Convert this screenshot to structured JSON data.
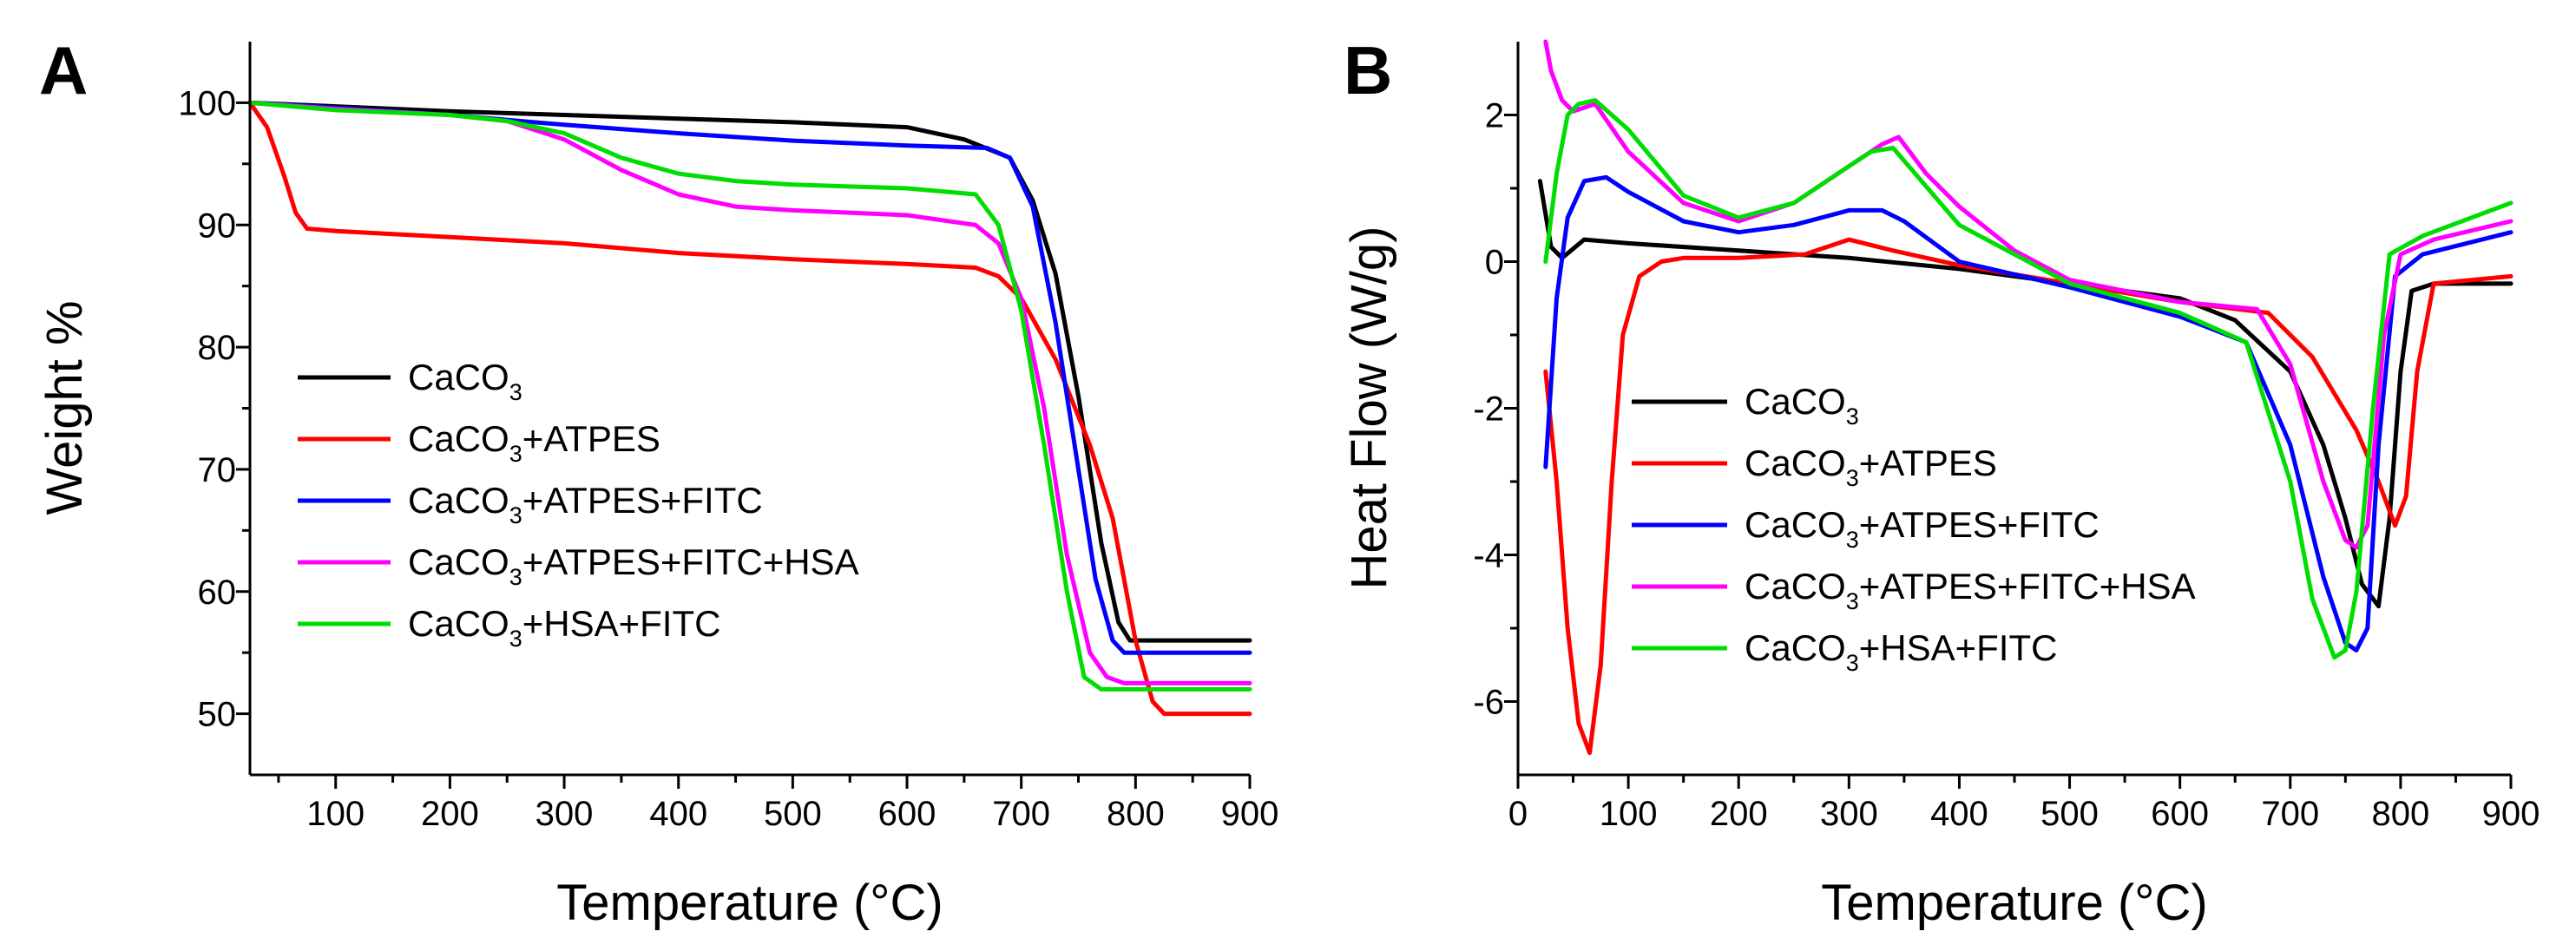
{
  "chart_data": [
    {
      "type": "line",
      "panel": "A",
      "title": "",
      "xlabel": "Temperature (°C)",
      "ylabel": "Weight %",
      "xlim": [
        25,
        900
      ],
      "ylim": [
        45,
        105
      ],
      "xticks": [
        100,
        200,
        300,
        400,
        500,
        600,
        700,
        800,
        900
      ],
      "yticks": [
        50,
        60,
        70,
        80,
        90,
        100
      ],
      "legend_position": "center-left",
      "series": [
        {
          "name": "CaCO3",
          "label": "CaCO",
          "sub": "3",
          "suffix": "",
          "color": "#000000",
          "x": [
            25,
            100,
            200,
            300,
            400,
            500,
            600,
            650,
            690,
            710,
            730,
            750,
            770,
            785,
            795,
            900
          ],
          "y": [
            100,
            99.7,
            99.3,
            99.0,
            98.7,
            98.4,
            98.0,
            97.0,
            95.5,
            92.0,
            86.0,
            76.0,
            64.0,
            57.5,
            56.0,
            56.0
          ]
        },
        {
          "name": "CaCO3+ATPES",
          "label": "CaCO",
          "sub": "3",
          "suffix": "+ATPES",
          "color": "#ff0000",
          "x": [
            25,
            40,
            55,
            65,
            75,
            100,
            200,
            300,
            400,
            500,
            600,
            660,
            680,
            700,
            730,
            760,
            780,
            800,
            815,
            825,
            900
          ],
          "y": [
            100,
            98.0,
            94.0,
            91.0,
            89.7,
            89.5,
            89.0,
            88.5,
            87.7,
            87.2,
            86.8,
            86.5,
            85.8,
            84.0,
            79.0,
            72.0,
            66.0,
            56.0,
            51.0,
            50.0,
            50.0
          ]
        },
        {
          "name": "CaCO3+ATPES+FITC",
          "label": "CaCO",
          "sub": "3",
          "suffix": "+ATPES+FITC",
          "color": "#0000ff",
          "x": [
            25,
            100,
            200,
            300,
            400,
            500,
            600,
            670,
            690,
            710,
            730,
            750,
            765,
            780,
            790,
            900
          ],
          "y": [
            100,
            99.6,
            99.0,
            98.2,
            97.5,
            96.9,
            96.5,
            96.3,
            95.5,
            91.5,
            82.0,
            70.0,
            61.0,
            56.0,
            55.0,
            55.0
          ]
        },
        {
          "name": "CaCO3+ATPES+FITC+HSA",
          "label": "CaCO",
          "sub": "3",
          "suffix": "+ATPES+FITC+HSA",
          "color": "#ff00ff",
          "x": [
            25,
            100,
            200,
            250,
            300,
            350,
            400,
            450,
            500,
            600,
            660,
            680,
            700,
            720,
            740,
            760,
            775,
            790,
            900
          ],
          "y": [
            100,
            99.5,
            99.0,
            98.5,
            97.0,
            94.5,
            92.5,
            91.5,
            91.2,
            90.8,
            90.0,
            88.5,
            84.0,
            75.0,
            63.0,
            55.0,
            53.0,
            52.5,
            52.5
          ]
        },
        {
          "name": "CaCO3+HSA+FITC",
          "label": "CaCO",
          "sub": "3",
          "suffix": "+HSA+FITC",
          "color": "#00dd00",
          "x": [
            25,
            100,
            200,
            250,
            300,
            350,
            400,
            450,
            500,
            600,
            660,
            680,
            700,
            720,
            740,
            755,
            770,
            900
          ],
          "y": [
            100,
            99.4,
            99.0,
            98.5,
            97.5,
            95.5,
            94.2,
            93.6,
            93.3,
            93.0,
            92.5,
            90.0,
            83.0,
            72.0,
            60.0,
            53.0,
            52.0,
            52.0
          ]
        }
      ]
    },
    {
      "type": "line",
      "panel": "B",
      "title": "",
      "xlabel": "Temperature (°C)",
      "ylabel": "Heat Flow (W/g)",
      "xlim": [
        0,
        900
      ],
      "ylim": [
        -7,
        3
      ],
      "xticks": [
        0,
        100,
        200,
        300,
        400,
        500,
        600,
        700,
        800,
        900
      ],
      "yticks": [
        -6,
        -4,
        -2,
        0,
        2
      ],
      "legend_position": "center-left",
      "series": [
        {
          "name": "CaCO3",
          "label": "CaCO",
          "sub": "3",
          "suffix": "",
          "color": "#000000",
          "x": [
            20,
            30,
            40,
            60,
            100,
            200,
            300,
            400,
            500,
            600,
            650,
            700,
            730,
            750,
            765,
            780,
            790,
            800,
            810,
            830,
            900
          ],
          "y": [
            1.1,
            0.2,
            0.05,
            0.3,
            0.25,
            0.15,
            0.05,
            -0.1,
            -0.3,
            -0.5,
            -0.8,
            -1.5,
            -2.5,
            -3.5,
            -4.4,
            -4.7,
            -3.5,
            -1.5,
            -0.4,
            -0.3,
            -0.3
          ]
        },
        {
          "name": "CaCO3+ATPES",
          "label": "CaCO",
          "sub": "3",
          "suffix": "+ATPES",
          "color": "#ff0000",
          "x": [
            25,
            35,
            45,
            55,
            65,
            75,
            85,
            95,
            110,
            130,
            150,
            200,
            260,
            300,
            340,
            400,
            500,
            600,
            680,
            720,
            760,
            780,
            795,
            805,
            815,
            830,
            900
          ],
          "y": [
            -1.5,
            -3.0,
            -5.0,
            -6.3,
            -6.7,
            -5.5,
            -3.0,
            -1.0,
            -0.2,
            0.0,
            0.05,
            0.05,
            0.1,
            0.3,
            0.15,
            -0.05,
            -0.3,
            -0.55,
            -0.7,
            -1.3,
            -2.3,
            -3.0,
            -3.6,
            -3.2,
            -1.5,
            -0.3,
            -0.2
          ]
        },
        {
          "name": "CaCO3+ATPES+FITC",
          "label": "CaCO",
          "sub": "3",
          "suffix": "+ATPES+FITC",
          "color": "#0000ff",
          "x": [
            25,
            35,
            45,
            60,
            80,
            100,
            150,
            200,
            250,
            300,
            330,
            350,
            400,
            500,
            600,
            660,
            700,
            730,
            750,
            760,
            770,
            780,
            795,
            820,
            900
          ],
          "y": [
            -2.8,
            -0.5,
            0.6,
            1.1,
            1.15,
            0.95,
            0.55,
            0.4,
            0.5,
            0.7,
            0.7,
            0.55,
            0.0,
            -0.35,
            -0.75,
            -1.1,
            -2.5,
            -4.3,
            -5.2,
            -5.3,
            -5.0,
            -2.5,
            -0.2,
            0.1,
            0.4
          ]
        },
        {
          "name": "CaCO3+ATPES+FITC+HSA",
          "label": "CaCO",
          "sub": "3",
          "suffix": "+ATPES+FITC+HSA",
          "color": "#ff00ff",
          "x": [
            25,
            30,
            40,
            50,
            70,
            100,
            150,
            200,
            250,
            300,
            330,
            345,
            370,
            400,
            450,
            500,
            600,
            670,
            700,
            730,
            750,
            760,
            770,
            785,
            800,
            830,
            900
          ],
          "y": [
            3.0,
            2.6,
            2.2,
            2.05,
            2.15,
            1.5,
            0.8,
            0.55,
            0.8,
            1.3,
            1.6,
            1.7,
            1.2,
            0.75,
            0.15,
            -0.25,
            -0.55,
            -0.65,
            -1.4,
            -3.0,
            -3.8,
            -3.9,
            -3.6,
            -1.0,
            0.1,
            0.3,
            0.55
          ]
        },
        {
          "name": "CaCO3+HSA+FITC",
          "label": "CaCO",
          "sub": "3",
          "suffix": "+HSA+FITC",
          "color": "#00dd00",
          "x": [
            25,
            35,
            45,
            55,
            70,
            100,
            150,
            200,
            250,
            300,
            320,
            340,
            360,
            400,
            500,
            600,
            660,
            700,
            720,
            740,
            750,
            760,
            775,
            790,
            820,
            900
          ],
          "y": [
            0.0,
            1.2,
            2.0,
            2.15,
            2.2,
            1.8,
            0.9,
            0.6,
            0.8,
            1.3,
            1.5,
            1.55,
            1.2,
            0.5,
            -0.3,
            -0.7,
            -1.1,
            -3.0,
            -4.6,
            -5.4,
            -5.3,
            -4.5,
            -2.0,
            0.1,
            0.35,
            0.8
          ]
        }
      ]
    }
  ]
}
